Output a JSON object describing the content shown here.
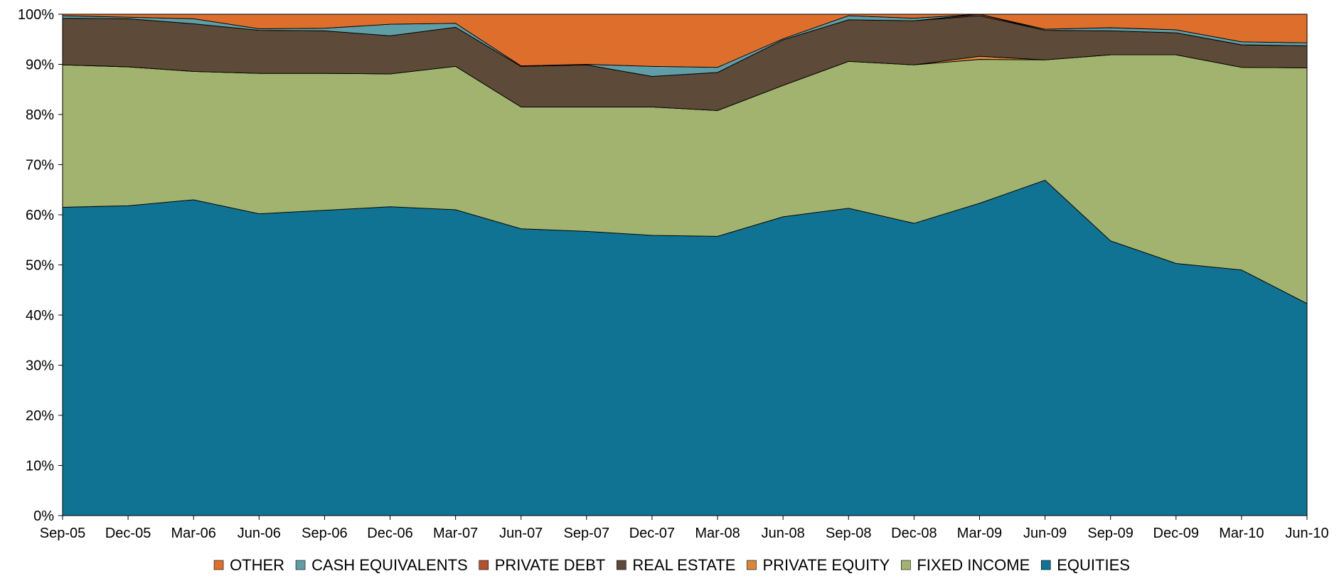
{
  "chart_data": {
    "type": "area",
    "stacked": true,
    "percent": true,
    "title": "",
    "xlabel": "",
    "ylabel": "",
    "ylim": [
      0,
      100
    ],
    "yticks": [
      "0%",
      "10%",
      "20%",
      "30%",
      "40%",
      "50%",
      "60%",
      "70%",
      "80%",
      "90%",
      "100%"
    ],
    "grid": false,
    "legend_position": "bottom",
    "categories": [
      "Sep-05",
      "Dec-05",
      "Mar-06",
      "Jun-06",
      "Sep-06",
      "Dec-06",
      "Mar-07",
      "Jun-07",
      "Sep-07",
      "Dec-07",
      "Mar-08",
      "Jun-08",
      "Sep-08",
      "Dec-08",
      "Mar-09",
      "Jun-09",
      "Sep-09",
      "Dec-09",
      "Mar-10",
      "Jun-10"
    ],
    "series": [
      {
        "name": "EQUITIES",
        "color": "#117393",
        "values": [
          61.5,
          61.8,
          63.0,
          60.2,
          60.9,
          61.6,
          61.0,
          57.2,
          56.7,
          55.9,
          55.7,
          59.6,
          61.3,
          58.3,
          62.3,
          66.9,
          54.8,
          50.3,
          49.0,
          42.3
        ]
      },
      {
        "name": "FIXED INCOME",
        "color": "#A1B36E",
        "values": [
          28.4,
          27.7,
          25.6,
          28.0,
          27.3,
          26.5,
          28.6,
          24.3,
          24.8,
          25.6,
          25.1,
          26.2,
          29.3,
          31.6,
          28.7,
          24.0,
          37.1,
          41.6,
          40.4,
          47.0
        ]
      },
      {
        "name": "PRIVATE EQUITY",
        "color": "#D9883B",
        "values": [
          0,
          0,
          0,
          0,
          0,
          0,
          0,
          0,
          0,
          0,
          0,
          0,
          0,
          0,
          0.6,
          0,
          0,
          0,
          0,
          0
        ]
      },
      {
        "name": "REAL ESTATE",
        "color": "#5D4A38",
        "values": [
          9.3,
          9.6,
          9.5,
          8.6,
          8.5,
          7.6,
          7.8,
          8.1,
          8.4,
          6.1,
          7.6,
          9.1,
          8.3,
          8.8,
          8.1,
          5.9,
          4.8,
          4.4,
          4.5,
          4.4
        ]
      },
      {
        "name": "PRIVATE DEBT",
        "color": "#B4532B",
        "values": [
          0,
          0,
          0,
          0,
          0,
          0,
          0,
          0,
          0,
          0,
          0,
          0,
          0,
          0,
          0.3,
          0,
          0,
          0,
          0,
          0
        ]
      },
      {
        "name": "CASH EQUIVALENTS",
        "color": "#5F9EA6",
        "values": [
          0.5,
          0.3,
          1.0,
          0.3,
          0.5,
          2.3,
          0.8,
          0.1,
          0.1,
          2.0,
          1.0,
          0.2,
          0.8,
          0.5,
          0,
          0.2,
          0.6,
          0.6,
          0.6,
          0.6
        ]
      },
      {
        "name": "OTHER",
        "color": "#DE6E2C",
        "values": [
          0.3,
          0.6,
          0.9,
          2.9,
          2.8,
          2.0,
          1.8,
          10.3,
          10.0,
          10.4,
          10.6,
          4.9,
          0.3,
          0.8,
          0,
          3.0,
          2.7,
          3.1,
          5.5,
          5.7
        ]
      }
    ],
    "legend": [
      {
        "name": "OTHER",
        "color": "#DE6E2C"
      },
      {
        "name": "CASH EQUIVALENTS",
        "color": "#5F9EA6"
      },
      {
        "name": "PRIVATE DEBT",
        "color": "#B4532B"
      },
      {
        "name": "REAL ESTATE",
        "color": "#5D4A38"
      },
      {
        "name": "PRIVATE EQUITY",
        "color": "#D9883B"
      },
      {
        "name": "FIXED INCOME",
        "color": "#A1B36E"
      },
      {
        "name": "EQUITIES",
        "color": "#117393"
      }
    ]
  }
}
